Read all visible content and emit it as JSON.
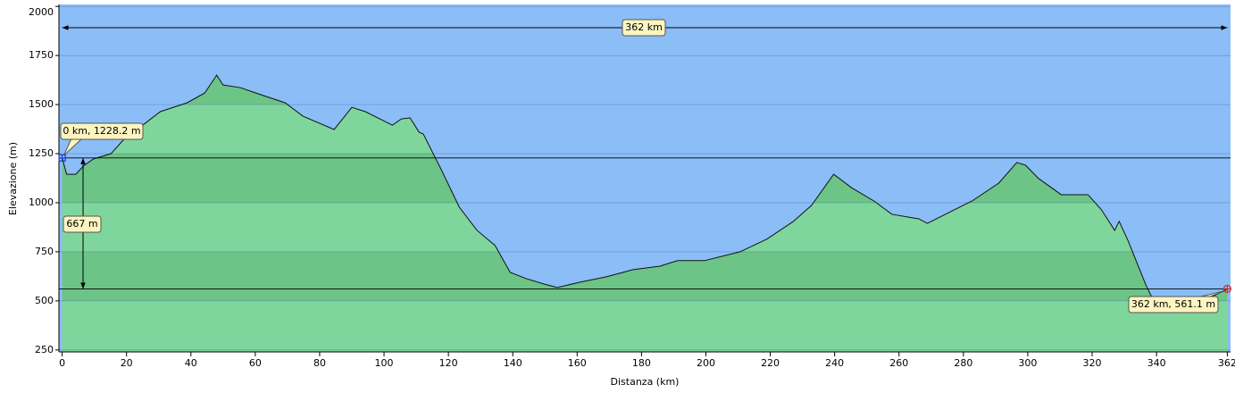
{
  "chart_data": {
    "type": "area",
    "y_label": "Elevazione (m)",
    "x_label": "Distanza   (km)",
    "x": [
      0,
      1.4,
      4.2,
      6.9,
      9.7,
      15.2,
      19.4,
      25,
      30.5,
      38.8,
      44.3,
      48,
      50,
      55.4,
      60.9,
      69.3,
      74.8,
      84.5,
      90,
      94.2,
      102.6,
      105.4,
      108.1,
      110.9,
      112.2,
      117.8,
      123.4,
      128.9,
      134.5,
      139.2,
      144.1,
      149.7,
      153.8,
      160.8,
      169.1,
      177.4,
      185.7,
      191.2,
      199.6,
      210.6,
      218.9,
      227.2,
      232.8,
      239.7,
      245.2,
      252.2,
      257.8,
      266.1,
      268.8,
      274.4,
      282.7,
      291,
      296.6,
      299.3,
      303.4,
      310.4,
      318.7,
      322.9,
      327,
      328.4,
      331.2,
      336.8,
      340.9,
      343.7,
      349.2,
      357.5,
      362
    ],
    "series": [
      {
        "name": "Elevazione",
        "color": "#7fd69c",
        "values": [
          1228.2,
          1145,
          1145,
          1191,
          1223,
          1250,
          1327,
          1395,
          1464,
          1509,
          1559,
          1650,
          1600,
          1586,
          1555,
          1509,
          1441,
          1373,
          1486,
          1464,
          1395,
          1427,
          1432,
          1359,
          1350,
          1168,
          977,
          859,
          782,
          645,
          614,
          586,
          568,
          595,
          623,
          659,
          677,
          705,
          705,
          750,
          814,
          905,
          986,
          1145,
          1077,
          1009,
          941,
          918,
          895,
          941,
          1009,
          1100,
          1205,
          1191,
          1123,
          1041,
          1041,
          964,
          859,
          905,
          805,
          577,
          441,
          441,
          464,
          523,
          561.1
        ]
      }
    ],
    "xlim": [
      -1,
      363
    ],
    "ylim": [
      240,
      2010
    ],
    "xticks": [
      0,
      20,
      40,
      60,
      80,
      100,
      120,
      140,
      160,
      180,
      200,
      220,
      240,
      260,
      280,
      300,
      320,
      340,
      362
    ],
    "yticks": [
      250,
      500,
      750,
      1000,
      1250,
      1500,
      1750,
      2000
    ],
    "background_color": "#8bbdf7",
    "band_color": "#6cc486",
    "start": {
      "x": 0,
      "y": 1228.2,
      "label": "0 km, 1228.2 m"
    },
    "end": {
      "x": 362,
      "y": 561.1,
      "label": "362 km, 561.1 m"
    },
    "span": {
      "value": 362,
      "label": "362 km"
    },
    "climb": {
      "value": 667,
      "label": "667 m"
    }
  }
}
